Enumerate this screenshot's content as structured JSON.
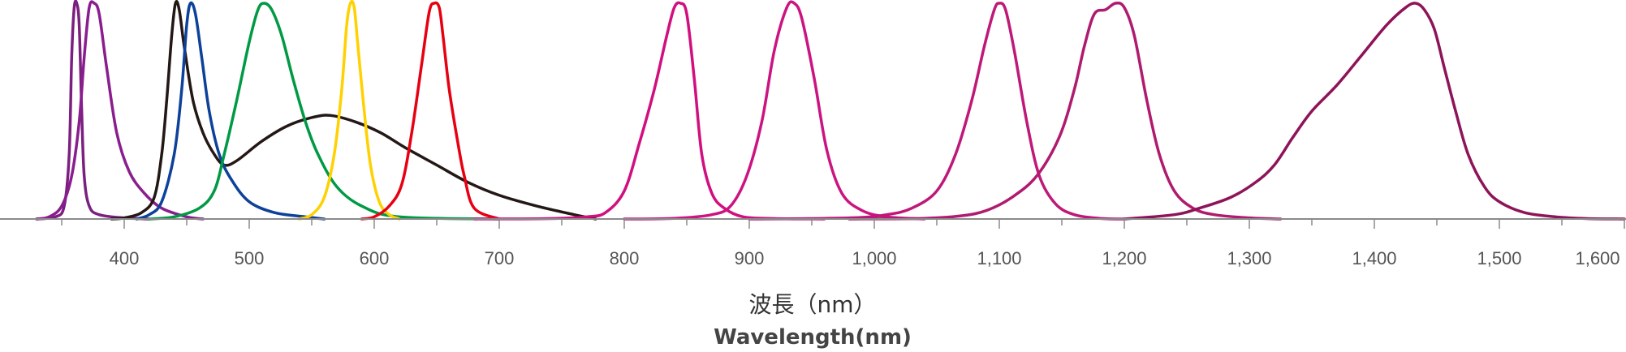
{
  "chart_data": {
    "type": "line",
    "title": "",
    "xlabel": "波長（nm）",
    "xlabel_en": "Wavelength(nm)",
    "ylabel": "",
    "xlim": [
      300,
      1600
    ],
    "ylim": [
      0,
      1
    ],
    "grid": false,
    "legend": "none",
    "x_ticks": [
      {
        "value": 400,
        "label": "400"
      },
      {
        "value": 500,
        "label": "500"
      },
      {
        "value": 600,
        "label": "600"
      },
      {
        "value": 700,
        "label": "700"
      },
      {
        "value": 800,
        "label": "800"
      },
      {
        "value": 900,
        "label": "900"
      },
      {
        "value": 1000,
        "label": "1,000"
      },
      {
        "value": 1100,
        "label": "1,100"
      },
      {
        "value": 1200,
        "label": "1,200"
      },
      {
        "value": 1300,
        "label": "1,300"
      },
      {
        "value": 1400,
        "label": "1,400"
      },
      {
        "value": 1500,
        "label": "1,500"
      },
      {
        "value": 1600,
        "label": "1,600"
      }
    ],
    "series": [
      {
        "color": "#7b2080",
        "points": [
          [
            330,
            0
          ],
          [
            345,
            0.01
          ],
          [
            352,
            0.06
          ],
          [
            356,
            0.3
          ],
          [
            358,
            0.75
          ],
          [
            360,
            0.98
          ],
          [
            362,
            1.0
          ],
          [
            364,
            0.9
          ],
          [
            366,
            0.5
          ],
          [
            368,
            0.2
          ],
          [
            372,
            0.06
          ],
          [
            380,
            0.02
          ],
          [
            400,
            0.005
          ],
          [
            420,
            0
          ]
        ]
      },
      {
        "color": "#8a1e8e",
        "points": [
          [
            330,
            0
          ],
          [
            340,
            0.01
          ],
          [
            350,
            0.06
          ],
          [
            358,
            0.2
          ],
          [
            364,
            0.45
          ],
          [
            368,
            0.75
          ],
          [
            372,
            0.98
          ],
          [
            376,
            1.0
          ],
          [
            380,
            0.95
          ],
          [
            386,
            0.7
          ],
          [
            394,
            0.4
          ],
          [
            404,
            0.22
          ],
          [
            416,
            0.12
          ],
          [
            430,
            0.05
          ],
          [
            450,
            0.01
          ],
          [
            463,
            0
          ]
        ]
      },
      {
        "color": "#231815",
        "points": [
          [
            390,
            0
          ],
          [
            400,
            0.005
          ],
          [
            414,
            0.03
          ],
          [
            424,
            0.1
          ],
          [
            430,
            0.3
          ],
          [
            434,
            0.55
          ],
          [
            438,
            0.85
          ],
          [
            441,
            1.0
          ],
          [
            444,
            0.97
          ],
          [
            448,
            0.8
          ],
          [
            455,
            0.55
          ],
          [
            463,
            0.4
          ],
          [
            472,
            0.3
          ],
          [
            480,
            0.25
          ],
          [
            490,
            0.27
          ],
          [
            510,
            0.36
          ],
          [
            530,
            0.43
          ],
          [
            550,
            0.47
          ],
          [
            565,
            0.48
          ],
          [
            585,
            0.45
          ],
          [
            605,
            0.4
          ],
          [
            625,
            0.33
          ],
          [
            650,
            0.25
          ],
          [
            675,
            0.17
          ],
          [
            700,
            0.11
          ],
          [
            730,
            0.06
          ],
          [
            760,
            0.02
          ],
          [
            777,
            0
          ]
        ]
      },
      {
        "color": "#0e419a",
        "points": [
          [
            410,
            0
          ],
          [
            420,
            0.02
          ],
          [
            430,
            0.08
          ],
          [
            440,
            0.3
          ],
          [
            446,
            0.6
          ],
          [
            450,
            0.9
          ],
          [
            453,
            1.0
          ],
          [
            457,
            0.95
          ],
          [
            462,
            0.75
          ],
          [
            468,
            0.5
          ],
          [
            476,
            0.3
          ],
          [
            486,
            0.18
          ],
          [
            500,
            0.08
          ],
          [
            520,
            0.03
          ],
          [
            545,
            0.01
          ],
          [
            560,
            0
          ]
        ]
      },
      {
        "color": "#009944",
        "points": [
          [
            420,
            0
          ],
          [
            440,
            0.01
          ],
          [
            460,
            0.05
          ],
          [
            472,
            0.13
          ],
          [
            480,
            0.3
          ],
          [
            490,
            0.55
          ],
          [
            500,
            0.82
          ],
          [
            507,
            0.97
          ],
          [
            512,
            1.0
          ],
          [
            518,
            0.97
          ],
          [
            526,
            0.85
          ],
          [
            535,
            0.65
          ],
          [
            545,
            0.45
          ],
          [
            555,
            0.3
          ],
          [
            570,
            0.15
          ],
          [
            590,
            0.06
          ],
          [
            620,
            0.01
          ],
          [
            700,
            0
          ]
        ]
      },
      {
        "color": "#ffd100",
        "points": [
          [
            540,
            0
          ],
          [
            550,
            0.02
          ],
          [
            560,
            0.1
          ],
          [
            568,
            0.3
          ],
          [
            574,
            0.6
          ],
          [
            578,
            0.9
          ],
          [
            581,
            1.0
          ],
          [
            584,
            0.98
          ],
          [
            587,
            0.8
          ],
          [
            592,
            0.5
          ],
          [
            597,
            0.25
          ],
          [
            604,
            0.08
          ],
          [
            612,
            0.02
          ],
          [
            620,
            0
          ]
        ]
      },
      {
        "color": "#e60012",
        "points": [
          [
            590,
            0
          ],
          [
            600,
            0.01
          ],
          [
            612,
            0.06
          ],
          [
            622,
            0.16
          ],
          [
            630,
            0.4
          ],
          [
            638,
            0.72
          ],
          [
            644,
            0.96
          ],
          [
            648,
            1.0
          ],
          [
            652,
            0.98
          ],
          [
            655,
            0.85
          ],
          [
            660,
            0.6
          ],
          [
            667,
            0.35
          ],
          [
            672,
            0.2
          ],
          [
            680,
            0.05
          ],
          [
            700,
            0
          ]
        ]
      },
      {
        "color": "#d10f7e",
        "points": [
          [
            680,
            0
          ],
          [
            740,
            0.002
          ],
          [
            770,
            0.01
          ],
          [
            785,
            0.03
          ],
          [
            800,
            0.13
          ],
          [
            812,
            0.35
          ],
          [
            824,
            0.6
          ],
          [
            834,
            0.85
          ],
          [
            840,
            0.98
          ],
          [
            845,
            1.0
          ],
          [
            850,
            0.95
          ],
          [
            856,
            0.65
          ],
          [
            862,
            0.3
          ],
          [
            870,
            0.12
          ],
          [
            880,
            0.05
          ],
          [
            895,
            0.01
          ],
          [
            920,
            0.002
          ],
          [
            960,
            0
          ]
        ]
      },
      {
        "color": "#cc1481",
        "points": [
          [
            800,
            0
          ],
          [
            840,
            0.003
          ],
          [
            870,
            0.02
          ],
          [
            885,
            0.06
          ],
          [
            898,
            0.2
          ],
          [
            910,
            0.45
          ],
          [
            920,
            0.78
          ],
          [
            930,
            0.98
          ],
          [
            936,
            1.0
          ],
          [
            942,
            0.93
          ],
          [
            952,
            0.65
          ],
          [
            962,
            0.32
          ],
          [
            974,
            0.12
          ],
          [
            990,
            0.04
          ],
          [
            1010,
            0.01
          ],
          [
            1040,
            0
          ]
        ]
      },
      {
        "color": "#be1979",
        "points": [
          [
            900,
            0
          ],
          [
            980,
            0.005
          ],
          [
            1010,
            0.02
          ],
          [
            1030,
            0.05
          ],
          [
            1050,
            0.13
          ],
          [
            1065,
            0.3
          ],
          [
            1078,
            0.55
          ],
          [
            1088,
            0.8
          ],
          [
            1096,
            0.97
          ],
          [
            1100,
            1.0
          ],
          [
            1105,
            0.97
          ],
          [
            1112,
            0.78
          ],
          [
            1122,
            0.45
          ],
          [
            1132,
            0.2
          ],
          [
            1145,
            0.07
          ],
          [
            1160,
            0.02
          ],
          [
            1180,
            0.003
          ],
          [
            1200,
            0
          ]
        ]
      },
      {
        "color": "#b01a6f",
        "points": [
          [
            980,
            0
          ],
          [
            1040,
            0.003
          ],
          [
            1070,
            0.015
          ],
          [
            1090,
            0.04
          ],
          [
            1110,
            0.1
          ],
          [
            1130,
            0.2
          ],
          [
            1148,
            0.38
          ],
          [
            1160,
            0.6
          ],
          [
            1168,
            0.8
          ],
          [
            1176,
            0.95
          ],
          [
            1185,
            0.97
          ],
          [
            1193,
            1.0
          ],
          [
            1200,
            0.98
          ],
          [
            1208,
            0.85
          ],
          [
            1218,
            0.55
          ],
          [
            1228,
            0.3
          ],
          [
            1240,
            0.13
          ],
          [
            1255,
            0.05
          ],
          [
            1272,
            0.02
          ],
          [
            1300,
            0.005
          ],
          [
            1325,
            0
          ]
        ]
      },
      {
        "color": "#8e1459",
        "points": [
          [
            1200,
            0
          ],
          [
            1240,
            0.02
          ],
          [
            1260,
            0.05
          ],
          [
            1285,
            0.1
          ],
          [
            1305,
            0.17
          ],
          [
            1320,
            0.25
          ],
          [
            1335,
            0.38
          ],
          [
            1350,
            0.5
          ],
          [
            1370,
            0.62
          ],
          [
            1390,
            0.76
          ],
          [
            1410,
            0.9
          ],
          [
            1425,
            0.98
          ],
          [
            1433,
            1.0
          ],
          [
            1440,
            0.97
          ],
          [
            1448,
            0.88
          ],
          [
            1456,
            0.7
          ],
          [
            1465,
            0.5
          ],
          [
            1475,
            0.3
          ],
          [
            1488,
            0.15
          ],
          [
            1500,
            0.08
          ],
          [
            1520,
            0.03
          ],
          [
            1545,
            0.01
          ],
          [
            1570,
            0.002
          ],
          [
            1600,
            0
          ]
        ]
      }
    ]
  }
}
